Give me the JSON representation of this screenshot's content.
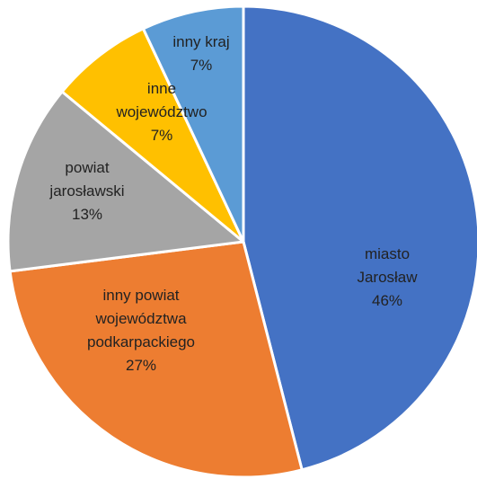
{
  "chart_data": {
    "type": "pie",
    "title": "",
    "start_angle_deg": 0,
    "direction": "clockwise",
    "slices": [
      {
        "label_lines": [
          "miasto",
          "Jarosław"
        ],
        "value_label": "46%",
        "value": 46,
        "color": "#4472C4"
      },
      {
        "label_lines": [
          "inny powiat",
          "województwa",
          "podkarpackiego"
        ],
        "value_label": "27%",
        "value": 27,
        "color": "#ED7D31"
      },
      {
        "label_lines": [
          "powiat",
          "jarosławski"
        ],
        "value_label": "13%",
        "value": 13,
        "color": "#A5A5A5"
      },
      {
        "label_lines": [
          "inne",
          "województwo"
        ],
        "value_label": "7%",
        "value": 7,
        "color": "#FFC000"
      },
      {
        "label_lines": [
          "inny kraj"
        ],
        "value_label": "7%",
        "value": 7,
        "color": "#5B9BD5"
      }
    ]
  }
}
